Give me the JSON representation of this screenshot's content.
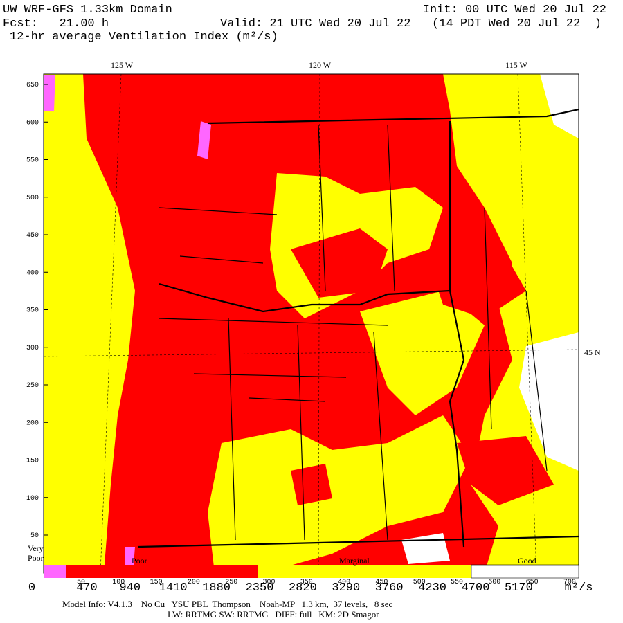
{
  "header": {
    "model": "UW WRF-GFS 1.33km Domain",
    "init": "Init: 00 UTC Wed 20 Jul 22",
    "fcst": "Fcst:   21.00 h",
    "valid": "Valid: 21 UTC Wed 20 Jul 22   (14 PDT Wed 20 Jul 22  )",
    "field": "12-hr average Ventilation Index (m²/s)"
  },
  "map": {
    "lon_labels": [
      "125 W",
      "120 W",
      "115 W"
    ],
    "lat_label": "45 N",
    "y_ticks": [
      "650",
      "600",
      "550",
      "500",
      "450",
      "400",
      "350",
      "300",
      "250",
      "200",
      "150",
      "100",
      "50"
    ],
    "x_ticks": [
      "50",
      "100",
      "150",
      "200",
      "250",
      "300",
      "350",
      "400",
      "450",
      "500",
      "550",
      "600",
      "650",
      "700"
    ]
  },
  "legend": {
    "categories": [
      "Very\nPoor",
      "Poor",
      "Marginal",
      "Good"
    ],
    "levels": [
      "0",
      "470",
      "940",
      "1410",
      "1880",
      "2350",
      "2820",
      "3290",
      "3760",
      "4230",
      "4700",
      "5170"
    ],
    "unit": "m²/s"
  },
  "footer": {
    "line1": "Model Info: V4.1.3    No Cu   YSU PBL  Thompson    Noah-MP   1.3 km,  37 levels,   8 sec",
    "line2": "LW: RRTMG SW: RRTMG   DIFF: full   KM: 2D Smagor"
  }
}
